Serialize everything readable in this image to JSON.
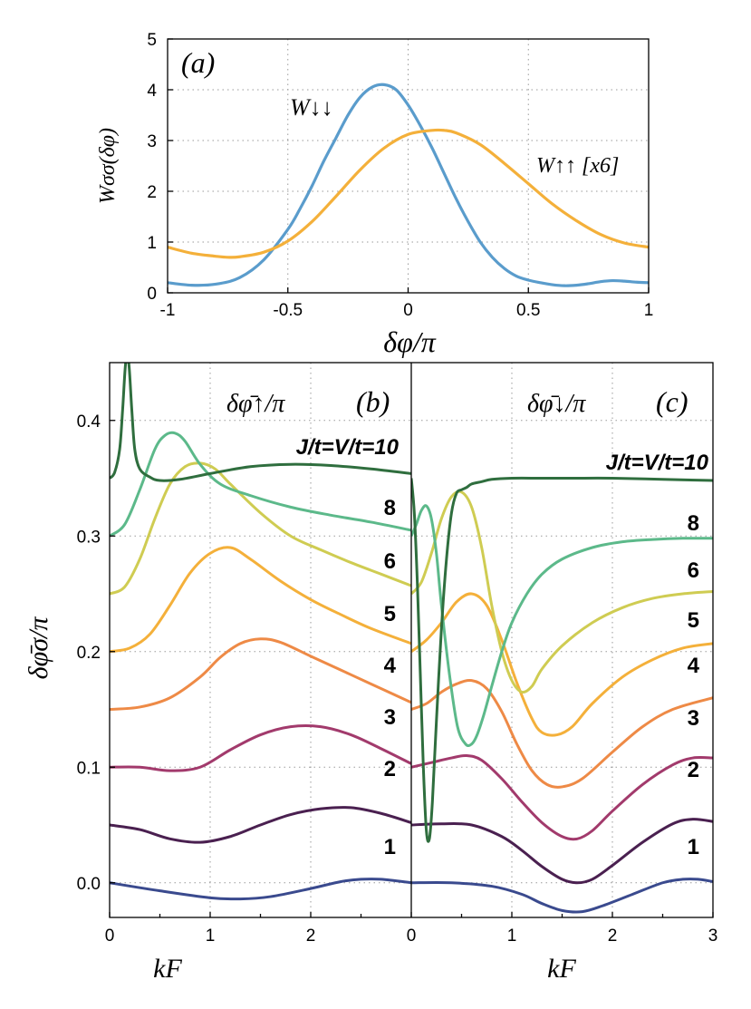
{
  "chart_data": [
    {
      "id": "a",
      "type": "line",
      "panel_label": "(a)",
      "xlabel": "δφ/π",
      "ylabel": "Wσσ(δφ)",
      "xlim": [
        -1,
        1
      ],
      "ylim": [
        0,
        5
      ],
      "xticks": [
        "-1",
        "-0.5",
        "0",
        "0.5",
        "1"
      ],
      "yticks": [
        "0",
        "1",
        "2",
        "3",
        "4",
        "5"
      ],
      "grid": true,
      "series": [
        {
          "name": "W↓↓",
          "color": "#5a9ccc",
          "x": [
            -1,
            -0.9,
            -0.8,
            -0.7,
            -0.6,
            -0.5,
            -0.45,
            -0.4,
            -0.35,
            -0.3,
            -0.25,
            -0.2,
            -0.15,
            -0.1,
            -0.05,
            0,
            0.05,
            0.1,
            0.15,
            0.2,
            0.25,
            0.3,
            0.35,
            0.4,
            0.45,
            0.5,
            0.55,
            0.6,
            0.65,
            0.7,
            0.75,
            0.8,
            0.85,
            0.9,
            0.95,
            1
          ],
          "y": [
            0.2,
            0.15,
            0.17,
            0.3,
            0.65,
            1.25,
            1.65,
            2.1,
            2.6,
            3.05,
            3.5,
            3.85,
            4.05,
            4.1,
            4.0,
            3.7,
            3.3,
            2.85,
            2.35,
            1.85,
            1.4,
            1.0,
            0.7,
            0.48,
            0.33,
            0.25,
            0.2,
            0.16,
            0.14,
            0.15,
            0.18,
            0.22,
            0.24,
            0.23,
            0.21,
            0.2
          ]
        },
        {
          "name": "W↑↑ [x6]",
          "color": "#f4b03a",
          "x": [
            -1,
            -0.9,
            -0.8,
            -0.75,
            -0.7,
            -0.6,
            -0.5,
            -0.4,
            -0.3,
            -0.2,
            -0.1,
            0,
            0.1,
            0.15,
            0.2,
            0.3,
            0.4,
            0.5,
            0.6,
            0.7,
            0.8,
            0.9,
            1
          ],
          "y": [
            0.9,
            0.78,
            0.72,
            0.7,
            0.71,
            0.8,
            1.02,
            1.4,
            1.9,
            2.42,
            2.85,
            3.12,
            3.2,
            3.2,
            3.15,
            2.92,
            2.55,
            2.15,
            1.75,
            1.42,
            1.15,
            0.98,
            0.9
          ]
        }
      ],
      "annotations": [
        "W↓↓",
        "W↑↑ [x6]"
      ]
    },
    {
      "id": "b",
      "type": "line",
      "panel_label": "(b)",
      "inner_title": "δφ̄↑/π",
      "xlabel": "kF",
      "ylabel": "δφ̄σ/π",
      "xlim": [
        0,
        3
      ],
      "ylim": [
        -0.03,
        0.45
      ],
      "xticks": [
        "0",
        "1",
        "2"
      ],
      "yticks": [
        "0.0",
        "0.1",
        "0.2",
        "0.3",
        "0.4"
      ],
      "grid": true,
      "series_labels": [
        "J/t=V/t=10",
        "8",
        "6",
        "5",
        "4",
        "3",
        "2",
        "1"
      ],
      "series": [
        {
          "name": "1",
          "color": "#3a4a8e",
          "x": [
            0,
            0.5,
            1,
            1.3,
            1.6,
            2,
            2.3,
            2.5,
            2.7,
            3
          ],
          "y": [
            0.0,
            -0.007,
            -0.013,
            -0.014,
            -0.012,
            -0.005,
            0.001,
            0.003,
            0.003,
            0.0
          ]
        },
        {
          "name": "2",
          "color": "#4a2050",
          "x": [
            0,
            0.3,
            0.6,
            0.9,
            1.2,
            1.5,
            1.8,
            2.1,
            2.4,
            2.7,
            3
          ],
          "y": [
            0.05,
            0.046,
            0.038,
            0.035,
            0.04,
            0.05,
            0.059,
            0.064,
            0.065,
            0.06,
            0.052
          ]
        },
        {
          "name": "3",
          "color": "#a23a6c",
          "x": [
            0,
            0.3,
            0.6,
            0.9,
            1.2,
            1.5,
            1.8,
            2.1,
            2.4,
            2.7,
            3
          ],
          "y": [
            0.1,
            0.1,
            0.097,
            0.1,
            0.115,
            0.128,
            0.135,
            0.135,
            0.128,
            0.116,
            0.103
          ]
        },
        {
          "name": "4",
          "color": "#ee8a46",
          "x": [
            0,
            0.3,
            0.6,
            0.9,
            1.1,
            1.3,
            1.5,
            1.7,
            2,
            2.3,
            2.6,
            3
          ],
          "y": [
            0.15,
            0.152,
            0.16,
            0.178,
            0.195,
            0.207,
            0.211,
            0.208,
            0.196,
            0.184,
            0.172,
            0.156
          ]
        },
        {
          "name": "5",
          "color": "#f4b03a",
          "x": [
            0,
            0.2,
            0.4,
            0.6,
            0.8,
            1,
            1.2,
            1.4,
            1.7,
            2,
            2.3,
            2.6,
            3
          ],
          "y": [
            0.2,
            0.203,
            0.215,
            0.24,
            0.268,
            0.285,
            0.29,
            0.28,
            0.261,
            0.245,
            0.232,
            0.22,
            0.207
          ]
        },
        {
          "name": "6",
          "color": "#cfcc52",
          "x": [
            0,
            0.15,
            0.3,
            0.45,
            0.6,
            0.75,
            0.9,
            1.05,
            1.2,
            1.5,
            1.8,
            2.1,
            2.4,
            2.7,
            3
          ],
          "y": [
            0.25,
            0.256,
            0.28,
            0.315,
            0.345,
            0.36,
            0.363,
            0.358,
            0.345,
            0.32,
            0.3,
            0.288,
            0.277,
            0.267,
            0.257
          ]
        },
        {
          "name": "8",
          "color": "#5cb98a",
          "x": [
            0,
            0.15,
            0.3,
            0.45,
            0.55,
            0.65,
            0.75,
            0.9,
            1.1,
            1.4,
            1.8,
            2.2,
            2.6,
            3
          ],
          "y": [
            0.3,
            0.31,
            0.34,
            0.375,
            0.387,
            0.389,
            0.382,
            0.362,
            0.345,
            0.335,
            0.325,
            0.318,
            0.312,
            0.305
          ]
        },
        {
          "name": "J/t=V/t=10",
          "color": "#2f6e3e",
          "x": [
            0,
            0.05,
            0.1,
            0.13,
            0.16,
            0.19,
            0.22,
            0.25,
            0.3,
            0.4,
            0.5,
            0.7,
            1,
            1.4,
            1.8,
            2.2,
            2.6,
            3
          ],
          "y": [
            0.35,
            0.355,
            0.375,
            0.41,
            0.45,
            0.45,
            0.41,
            0.375,
            0.358,
            0.351,
            0.348,
            0.349,
            0.354,
            0.36,
            0.362,
            0.361,
            0.358,
            0.354
          ]
        }
      ]
    },
    {
      "id": "c",
      "type": "line",
      "panel_label": "(c)",
      "inner_title": "δφ̄↓/π",
      "xlabel": "kF",
      "xlim": [
        0,
        3
      ],
      "ylim": [
        -0.03,
        0.45
      ],
      "xticks": [
        "0",
        "1",
        "2",
        "3"
      ],
      "grid": true,
      "series_labels": [
        "J/t=V/t=10",
        "8",
        "6",
        "5",
        "4",
        "3",
        "2",
        "1"
      ],
      "series": [
        {
          "name": "1",
          "color": "#3a4a8e",
          "x": [
            0,
            0.4,
            0.8,
            1.1,
            1.3,
            1.5,
            1.7,
            1.9,
            2.2,
            2.5,
            2.7,
            2.85,
            3
          ],
          "y": [
            0.0,
            0.0,
            -0.003,
            -0.01,
            -0.018,
            -0.024,
            -0.025,
            -0.02,
            -0.01,
            0.0,
            0.003,
            0.003,
            0.001
          ]
        },
        {
          "name": "2",
          "color": "#4a2050",
          "x": [
            0,
            0.3,
            0.6,
            0.9,
            1.1,
            1.3,
            1.5,
            1.65,
            1.8,
            2,
            2.3,
            2.6,
            2.8,
            3
          ],
          "y": [
            0.05,
            0.051,
            0.05,
            0.04,
            0.028,
            0.014,
            0.003,
            0.0,
            0.003,
            0.015,
            0.035,
            0.051,
            0.055,
            0.053
          ]
        },
        {
          "name": "3",
          "color": "#a23a6c",
          "x": [
            0,
            0.2,
            0.4,
            0.55,
            0.7,
            0.9,
            1.1,
            1.3,
            1.5,
            1.65,
            1.8,
            2,
            2.3,
            2.6,
            2.8,
            3
          ],
          "y": [
            0.1,
            0.104,
            0.108,
            0.11,
            0.106,
            0.09,
            0.07,
            0.052,
            0.04,
            0.038,
            0.045,
            0.062,
            0.085,
            0.102,
            0.108,
            0.108
          ]
        },
        {
          "name": "4",
          "color": "#ee8a46",
          "x": [
            0,
            0.15,
            0.3,
            0.45,
            0.6,
            0.75,
            0.9,
            1.05,
            1.2,
            1.35,
            1.5,
            1.7,
            2,
            2.3,
            2.6,
            3
          ],
          "y": [
            0.15,
            0.155,
            0.165,
            0.172,
            0.175,
            0.168,
            0.148,
            0.12,
            0.097,
            0.085,
            0.083,
            0.09,
            0.113,
            0.135,
            0.15,
            0.16
          ]
        },
        {
          "name": "5",
          "color": "#f4b03a",
          "x": [
            0,
            0.15,
            0.3,
            0.45,
            0.6,
            0.75,
            0.9,
            1.05,
            1.2,
            1.3,
            1.45,
            1.6,
            1.8,
            2.1,
            2.4,
            2.7,
            3
          ],
          "y": [
            0.2,
            0.21,
            0.225,
            0.243,
            0.25,
            0.24,
            0.21,
            0.173,
            0.142,
            0.13,
            0.128,
            0.135,
            0.155,
            0.178,
            0.193,
            0.203,
            0.207
          ]
        },
        {
          "name": "6",
          "color": "#cfcc52",
          "x": [
            0,
            0.1,
            0.2,
            0.3,
            0.4,
            0.5,
            0.6,
            0.7,
            0.8,
            0.9,
            1.0,
            1.1,
            1.2,
            1.3,
            1.5,
            1.8,
            2.1,
            2.4,
            2.7,
            3
          ],
          "y": [
            0.25,
            0.26,
            0.285,
            0.315,
            0.334,
            0.338,
            0.325,
            0.29,
            0.24,
            0.2,
            0.175,
            0.165,
            0.17,
            0.185,
            0.205,
            0.225,
            0.238,
            0.246,
            0.25,
            0.252
          ]
        },
        {
          "name": "8",
          "color": "#5cb98a",
          "x": [
            0,
            0.05,
            0.1,
            0.15,
            0.2,
            0.25,
            0.3,
            0.38,
            0.46,
            0.54,
            0.6,
            0.65,
            0.72,
            0.8,
            0.9,
            1.0,
            1.15,
            1.3,
            1.5,
            1.8,
            2.1,
            2.4,
            2.7,
            3
          ],
          "y": [
            0.3,
            0.31,
            0.322,
            0.326,
            0.315,
            0.285,
            0.24,
            0.18,
            0.135,
            0.12,
            0.12,
            0.127,
            0.145,
            0.17,
            0.2,
            0.225,
            0.25,
            0.267,
            0.28,
            0.29,
            0.295,
            0.297,
            0.298,
            0.298
          ]
        },
        {
          "name": "J/t=V/t=10",
          "color": "#2f6e3e",
          "x": [
            0,
            0.03,
            0.06,
            0.09,
            0.12,
            0.15,
            0.18,
            0.21,
            0.25,
            0.3,
            0.35,
            0.4,
            0.45,
            0.5,
            0.55,
            0.6,
            0.7,
            0.8,
            1.0,
            1.3,
            1.6,
            2.0,
            2.5,
            3
          ],
          "y": [
            0.35,
            0.32,
            0.26,
            0.18,
            0.1,
            0.045,
            0.038,
            0.07,
            0.14,
            0.22,
            0.28,
            0.32,
            0.337,
            0.34,
            0.342,
            0.345,
            0.347,
            0.349,
            0.35,
            0.35,
            0.35,
            0.35,
            0.349,
            0.348
          ]
        }
      ]
    }
  ]
}
